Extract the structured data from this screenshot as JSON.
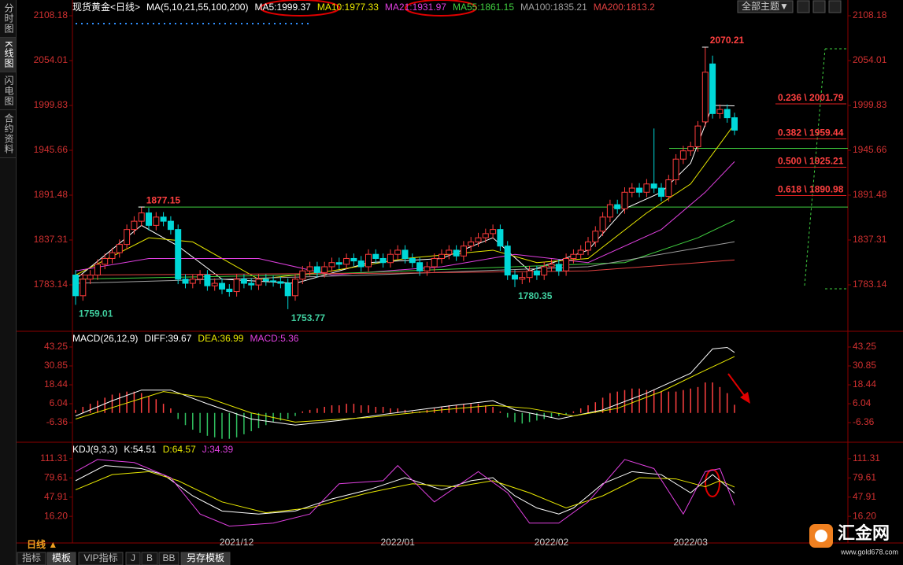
{
  "header": {
    "theme_button": "全部主题▼"
  },
  "sidebar": [
    "分时图",
    "K线图",
    "闪电图",
    "合约资料"
  ],
  "footer": {
    "period": "日线 ▲",
    "tabs": [
      "指标",
      "模板",
      "VIP指标",
      "J",
      "B",
      "BB",
      "另存模板"
    ],
    "logo": "汇金网",
    "url": "www.gold678.com"
  },
  "chart_data": [
    {
      "type": "candlestick",
      "title": "现货黄金<日线>",
      "legend_title": "MA(5,10,21,55,100,200)",
      "color_up": "#ff3c3c",
      "color_down": "#00d8d8",
      "open": [
        1795,
        1770,
        1790,
        1795,
        1808,
        1815,
        1822,
        1832,
        1850,
        1860,
        1870,
        1855,
        1865,
        1860,
        1850,
        1790,
        1785,
        1790,
        1795,
        1782,
        1785,
        1778,
        1775,
        1790,
        1785,
        1783,
        1790,
        1788,
        1787,
        1785,
        1770,
        1790,
        1800,
        1805,
        1798,
        1805,
        1810,
        1808,
        1815,
        1812,
        1805,
        1820,
        1815,
        1810,
        1820,
        1825,
        1815,
        1810,
        1800,
        1805,
        1815,
        1820,
        1825,
        1818,
        1830,
        1835,
        1840,
        1845,
        1850,
        1830,
        1795,
        1790,
        1792,
        1800,
        1795,
        1805,
        1808,
        1800,
        1815,
        1820,
        1825,
        1835,
        1848,
        1865,
        1880,
        1875,
        1895,
        1900,
        1895,
        1905,
        1900,
        1890,
        1910,
        1935,
        1945,
        1950,
        1980,
        2050,
        1990,
        1995,
        1985
      ],
      "high": [
        1801,
        1796,
        1801,
        1814,
        1821,
        1828,
        1838,
        1856,
        1866,
        1877.15,
        1876,
        1871,
        1871,
        1866,
        1856,
        1796,
        1796,
        1801,
        1801,
        1791,
        1791,
        1784,
        1796,
        1796,
        1791,
        1796,
        1796,
        1794,
        1793,
        1791,
        1796,
        1806,
        1811,
        1811,
        1811,
        1816,
        1816,
        1821,
        1821,
        1818,
        1826,
        1826,
        1821,
        1826,
        1831,
        1831,
        1821,
        1816,
        1811,
        1821,
        1826,
        1831,
        1831,
        1836,
        1841,
        1846,
        1851,
        1856,
        1856,
        1836,
        1801,
        1798,
        1806,
        1806,
        1811,
        1814,
        1814,
        1821,
        1826,
        1831,
        1841,
        1854,
        1871,
        1886,
        1886,
        1901,
        1906,
        1906,
        1911,
        1972,
        1906,
        1916,
        1941,
        1951,
        1956,
        1981,
        2070.21,
        2060,
        2001,
        2001,
        1991
      ],
      "low": [
        1759.01,
        1764,
        1784,
        1789,
        1802,
        1809,
        1816,
        1826,
        1844,
        1854,
        1849,
        1849,
        1854,
        1844,
        1784,
        1779,
        1779,
        1784,
        1776,
        1776,
        1772,
        1769,
        1769,
        1779,
        1777,
        1777,
        1782,
        1781,
        1779,
        1753.77,
        1764,
        1784,
        1794,
        1792,
        1792,
        1799,
        1802,
        1802,
        1806,
        1799,
        1799,
        1809,
        1804,
        1804,
        1814,
        1809,
        1804,
        1794,
        1794,
        1799,
        1809,
        1814,
        1812,
        1812,
        1824,
        1829,
        1834,
        1839,
        1824,
        1789,
        1780.35,
        1784,
        1786,
        1789,
        1789,
        1799,
        1794,
        1794,
        1809,
        1814,
        1819,
        1829,
        1842,
        1859,
        1869,
        1869,
        1889,
        1889,
        1889,
        1894,
        1884,
        1884,
        1904,
        1929,
        1939,
        1944,
        1974,
        1984,
        1984,
        1979,
        1964
      ],
      "close": [
        1770,
        1790,
        1795,
        1808,
        1815,
        1822,
        1832,
        1850,
        1860,
        1870,
        1855,
        1865,
        1860,
        1850,
        1790,
        1785,
        1790,
        1795,
        1782,
        1785,
        1778,
        1775,
        1790,
        1785,
        1783,
        1790,
        1788,
        1787,
        1785,
        1770,
        1790,
        1800,
        1805,
        1798,
        1805,
        1810,
        1808,
        1815,
        1812,
        1805,
        1820,
        1815,
        1810,
        1820,
        1825,
        1815,
        1810,
        1800,
        1805,
        1815,
        1820,
        1825,
        1818,
        1830,
        1835,
        1840,
        1845,
        1850,
        1830,
        1795,
        1790,
        1792,
        1800,
        1795,
        1805,
        1808,
        1800,
        1815,
        1820,
        1825,
        1835,
        1848,
        1865,
        1880,
        1875,
        1895,
        1900,
        1895,
        1905,
        1900,
        1890,
        1910,
        1935,
        1945,
        1950,
        1975,
        2040,
        1990,
        1995,
        1985,
        1970
      ],
      "series": [
        {
          "name": "MA5:1999.37",
          "color": "#ffffff",
          "x": [
            0,
            9,
            14,
            20,
            30,
            40,
            50,
            57,
            62,
            70,
            75,
            80,
            84,
            87,
            90
          ],
          "values": [
            1790,
            1855,
            1830,
            1790,
            1785,
            1810,
            1815,
            1840,
            1800,
            1825,
            1875,
            1895,
            1930,
            2000,
            1999.37
          ]
        },
        {
          "name": "MA10:1977.33",
          "color": "#e8e800",
          "x": [
            0,
            10,
            16,
            25,
            35,
            45,
            57,
            63,
            70,
            78,
            84,
            90
          ],
          "values": [
            1795,
            1840,
            1835,
            1790,
            1800,
            1815,
            1825,
            1810,
            1815,
            1870,
            1905,
            1977.33
          ]
        },
        {
          "name": "MA21:1931.97",
          "color": "#e040e0",
          "x": [
            0,
            10,
            25,
            35,
            50,
            60,
            70,
            80,
            86,
            90
          ],
          "values": [
            1800,
            1815,
            1815,
            1795,
            1805,
            1820,
            1810,
            1850,
            1895,
            1931.97
          ]
        },
        {
          "name": "MA55:1861.15",
          "color": "#40d040",
          "x": [
            0,
            30,
            60,
            75,
            85,
            90
          ],
          "values": [
            1790,
            1795,
            1805,
            1810,
            1840,
            1861.15
          ]
        },
        {
          "name": "MA100:1835.21",
          "color": "#a0a0a0",
          "x": [
            0,
            40,
            70,
            90
          ],
          "values": [
            1785,
            1795,
            1805,
            1835.21
          ]
        },
        {
          "name": "MA200:1813.2",
          "color": "#e04040",
          "x": [
            0,
            40,
            70,
            90
          ],
          "values": [
            1795,
            1797,
            1800,
            1813.2
          ]
        }
      ],
      "annotations": [
        {
          "x": 86,
          "value": 2070.21
        },
        {
          "x": 9,
          "value": 1877.15
        },
        {
          "x": 0,
          "value": 1759.01
        },
        {
          "x": 29,
          "value": 1753.77
        },
        {
          "x": 60,
          "value": 1780.35
        }
      ],
      "support_lines": [
        1877.15,
        1948
      ],
      "fib_levels": [
        {
          "label": "0.236 \\ 2001.79",
          "value": 2001.79
        },
        {
          "label": "0.382 \\ 1959.44",
          "value": 1959.44
        },
        {
          "label": "0.500 \\ 1925.21",
          "value": 1925.21
        },
        {
          "label": "0.618 \\ 1890.98",
          "value": 1890.98
        }
      ],
      "ylim": [
        1729.9,
        2119.6
      ],
      "yticks": [
        2108.18,
        2054.01,
        1999.83,
        1945.66,
        1891.48,
        1837.31,
        1783.14
      ]
    },
    {
      "type": "bar",
      "title": "MACD(26,12,9)",
      "color_pos": "#ff4040",
      "color_neg": "#30c060",
      "histogram": {
        "name": "MACD:5.36",
        "color": "#e040e0",
        "values": [
          2,
          4,
          6,
          8,
          10,
          12,
          13,
          14,
          14,
          13,
          11,
          9,
          6,
          3,
          -4,
          -8,
          -11,
          -13,
          -15,
          -16,
          -17,
          -17,
          -16,
          -14,
          -12,
          -10,
          -8,
          -6,
          -5,
          -4,
          -2,
          1,
          2,
          3,
          4,
          5,
          5,
          6,
          6,
          5,
          5,
          4,
          4,
          3,
          3,
          2,
          1,
          1,
          2,
          3,
          4,
          5,
          5,
          6,
          6,
          6,
          5,
          4,
          1,
          -3,
          -6,
          -7,
          -6,
          -5,
          -4,
          -3,
          -2,
          -1,
          1,
          3,
          5,
          7,
          10,
          13,
          14,
          15,
          16,
          16,
          15,
          15,
          14,
          14,
          14,
          15,
          16,
          17,
          20,
          20,
          17,
          13,
          5.36
        ]
      },
      "series": [
        {
          "name": "DIFF:39.67",
          "color": "#ffffff",
          "x": [
            0,
            5,
            9,
            13,
            18,
            24,
            30,
            36,
            42,
            50,
            57,
            60,
            66,
            72,
            78,
            84,
            87,
            89,
            90
          ],
          "values": [
            -2,
            8,
            15,
            15,
            6,
            -4,
            -8,
            -5,
            -1,
            4,
            8,
            2,
            -4,
            2,
            13,
            26,
            42,
            43,
            39.67
          ]
        },
        {
          "name": "DEA:36.99",
          "color": "#e8e800",
          "x": [
            0,
            6,
            12,
            18,
            24,
            30,
            40,
            50,
            57,
            62,
            68,
            74,
            80,
            86,
            90
          ],
          "values": [
            -4,
            5,
            14,
            10,
            0,
            -6,
            -3,
            2,
            5,
            3,
            -2,
            3,
            14,
            28,
            36.99
          ]
        }
      ],
      "ylim": [
        -18.2,
        51.5
      ],
      "yticks": [
        43.25,
        30.85,
        18.44,
        6.04,
        -6.36
      ]
    },
    {
      "type": "line",
      "title": "KDJ(9,3,3)",
      "categories": [
        null,
        null,
        null,
        null,
        null,
        null,
        null,
        null,
        null,
        null,
        null,
        null,
        null,
        null,
        null,
        null,
        null,
        null,
        null,
        null,
        null,
        null,
        "2021/12",
        null,
        null,
        null,
        null,
        null,
        null,
        null,
        null,
        null,
        null,
        null,
        null,
        null,
        null,
        null,
        null,
        null,
        null,
        null,
        null,
        null,
        "2022/01",
        null,
        null,
        null,
        null,
        null,
        null,
        null,
        null,
        null,
        null,
        null,
        null,
        null,
        null,
        null,
        null,
        null,
        null,
        null,
        null,
        "2022/02",
        null,
        null,
        null,
        null,
        null,
        null,
        null,
        null,
        null,
        null,
        null,
        null,
        null,
        null,
        null,
        null,
        null,
        null,
        "2022/03",
        null,
        null,
        null,
        null,
        null,
        null
      ],
      "series": [
        {
          "name": "K:54.51",
          "color": "#ffffff",
          "x": [
            0,
            4,
            9,
            12,
            16,
            20,
            25,
            30,
            35,
            40,
            45,
            50,
            54,
            57,
            60,
            63,
            66,
            68,
            72,
            76,
            80,
            84,
            87,
            90
          ],
          "values": [
            75,
            100,
            95,
            85,
            50,
            25,
            20,
            25,
            45,
            60,
            80,
            60,
            75,
            80,
            50,
            30,
            20,
            30,
            70,
            90,
            85,
            55,
            85,
            54.51
          ]
        },
        {
          "name": "D:64.57",
          "color": "#e8e800",
          "x": [
            0,
            5,
            10,
            14,
            20,
            26,
            32,
            40,
            46,
            52,
            57,
            62,
            67,
            72,
            77,
            82,
            86,
            88,
            90
          ],
          "values": [
            60,
            85,
            90,
            75,
            40,
            22,
            30,
            55,
            70,
            65,
            75,
            55,
            30,
            50,
            80,
            78,
            65,
            75,
            64.57
          ]
        },
        {
          "name": "J:34.39",
          "color": "#e040e0",
          "x": [
            0,
            3,
            8,
            13,
            17,
            21,
            27,
            32,
            36,
            42,
            44,
            49,
            55,
            59,
            62,
            66,
            70,
            75,
            79,
            83,
            86,
            88,
            90
          ],
          "values": [
            90,
            110,
            105,
            80,
            20,
            0,
            5,
            20,
            70,
            75,
            100,
            40,
            90,
            55,
            5,
            5,
            40,
            110,
            95,
            20,
            90,
            95,
            34.39
          ]
        }
      ],
      "ylim": [
        -27.8,
        132.0
      ],
      "yticks": [
        111.31,
        79.61,
        47.91,
        {
          "value": 16.2,
          "label": "16.20"
        }
      ]
    }
  ]
}
